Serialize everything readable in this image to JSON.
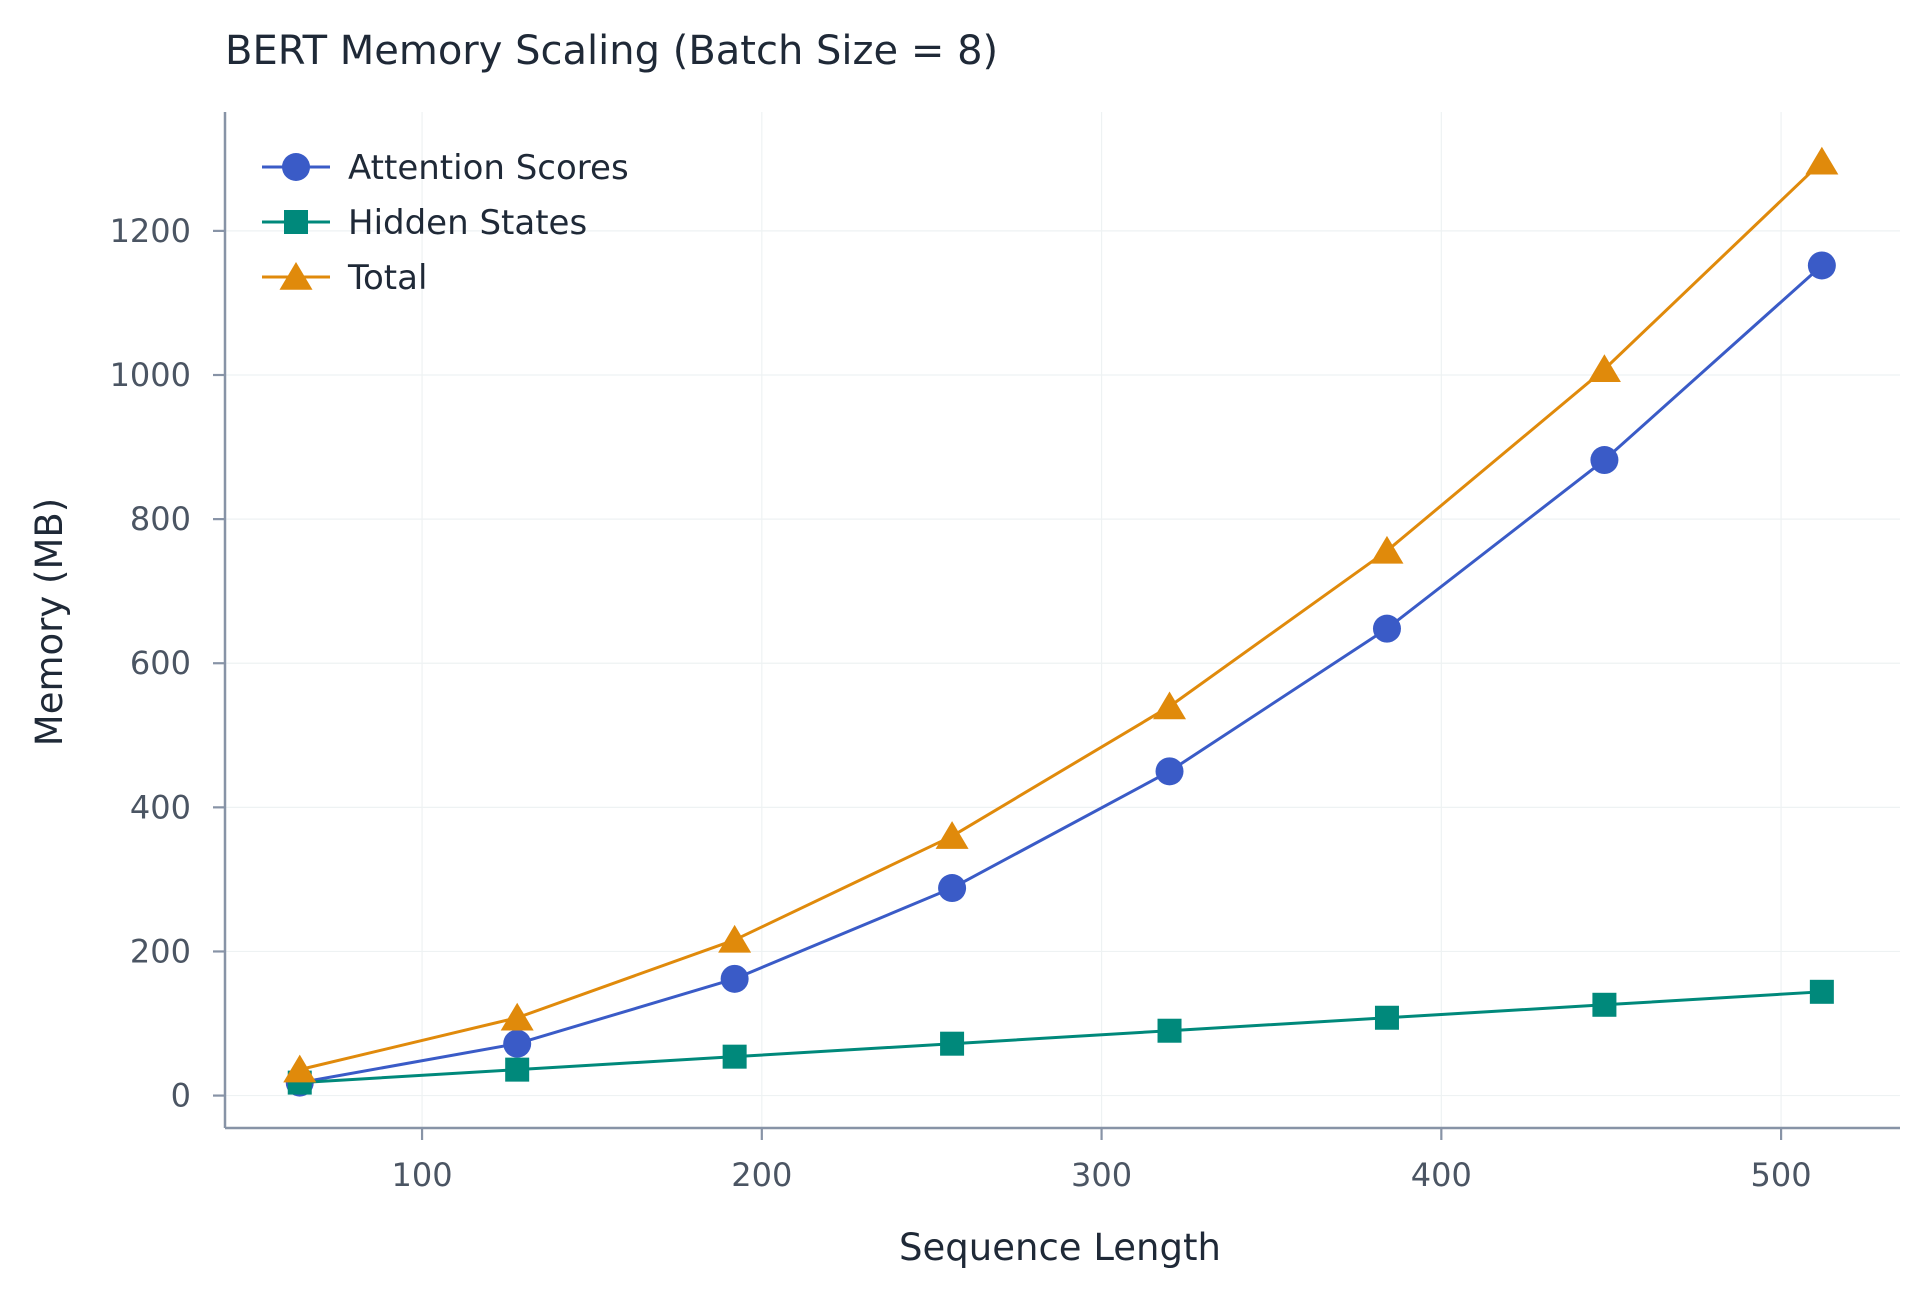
{
  "chart_data": {
    "type": "line",
    "title": "BERT Memory Scaling (Batch Size = 8)",
    "xlabel": "Sequence Length",
    "ylabel": "Memory (MB)",
    "xlim": [
      42,
      535
    ],
    "ylim": [
      -45,
      1365
    ],
    "xticks": [
      100,
      200,
      300,
      400,
      500
    ],
    "yticks": [
      0,
      200,
      400,
      600,
      800,
      1000,
      1200
    ],
    "grid": true,
    "legend_position": "top-left",
    "x": [
      64,
      128,
      192,
      256,
      320,
      384,
      448,
      512
    ],
    "series": [
      {
        "name": "Attention Scores",
        "color": "#3a5bc7",
        "marker": "circle",
        "values": [
          18,
          72,
          162,
          288,
          450,
          648,
          882,
          1152
        ]
      },
      {
        "name": "Hidden States",
        "color": "#00897b",
        "marker": "square",
        "values": [
          18,
          36,
          54,
          72,
          90,
          108,
          126,
          144
        ]
      },
      {
        "name": "Total",
        "color": "#e08a0b",
        "marker": "triangle",
        "values": [
          36,
          108,
          216,
          360,
          540,
          756,
          1008,
          1296
        ]
      }
    ]
  }
}
